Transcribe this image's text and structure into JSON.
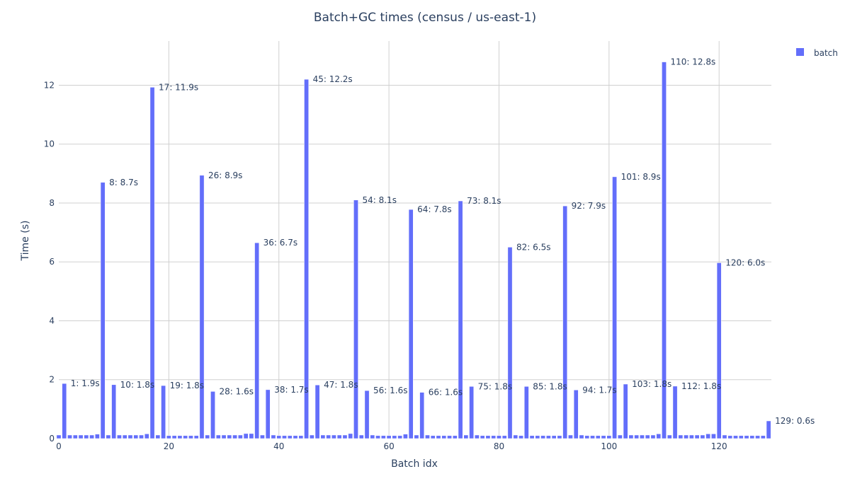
{
  "chart_data": {
    "type": "bar",
    "title": "Batch+GC times (census / us-east-1)",
    "xlabel": "Batch idx",
    "ylabel": "Time (s)",
    "xlim": [
      0,
      129.5
    ],
    "ylim": [
      0,
      13.5
    ],
    "xticks": [
      0,
      20,
      40,
      60,
      80,
      100,
      120
    ],
    "yticks": [
      0,
      2,
      4,
      6,
      8,
      10,
      12
    ],
    "grid": true,
    "legend_position": "top-right",
    "series": [
      {
        "name": "batch",
        "color": "#636efa",
        "x": [
          0,
          1,
          2,
          3,
          4,
          5,
          6,
          7,
          8,
          9,
          10,
          11,
          12,
          13,
          14,
          15,
          16,
          17,
          18,
          19,
          20,
          21,
          22,
          23,
          24,
          25,
          26,
          27,
          28,
          29,
          30,
          31,
          32,
          33,
          34,
          35,
          36,
          37,
          38,
          39,
          40,
          41,
          42,
          43,
          44,
          45,
          46,
          47,
          48,
          49,
          50,
          51,
          52,
          53,
          54,
          55,
          56,
          57,
          58,
          59,
          60,
          61,
          62,
          63,
          64,
          65,
          66,
          67,
          68,
          69,
          70,
          71,
          72,
          73,
          74,
          75,
          76,
          77,
          78,
          79,
          80,
          81,
          82,
          83,
          84,
          85,
          86,
          87,
          88,
          89,
          90,
          91,
          92,
          93,
          94,
          95,
          96,
          97,
          98,
          99,
          100,
          101,
          102,
          103,
          104,
          105,
          106,
          107,
          108,
          109,
          110,
          111,
          112,
          113,
          114,
          115,
          116,
          117,
          118,
          119,
          120,
          121,
          122,
          123,
          124,
          125,
          126,
          127,
          128,
          129
        ],
        "values": [
          0.12,
          1.87,
          0.12,
          0.12,
          0.12,
          0.12,
          0.12,
          0.15,
          8.7,
          0.12,
          1.83,
          0.12,
          0.12,
          0.12,
          0.12,
          0.12,
          0.16,
          11.93,
          0.12,
          1.8,
          0.1,
          0.1,
          0.1,
          0.1,
          0.1,
          0.1,
          8.94,
          0.12,
          1.6,
          0.12,
          0.12,
          0.12,
          0.12,
          0.12,
          0.17,
          0.17,
          6.65,
          0.12,
          1.66,
          0.12,
          0.1,
          0.1,
          0.1,
          0.1,
          0.1,
          12.2,
          0.12,
          1.82,
          0.12,
          0.12,
          0.12,
          0.12,
          0.12,
          0.17,
          8.1,
          0.12,
          1.63,
          0.12,
          0.1,
          0.1,
          0.1,
          0.1,
          0.1,
          0.15,
          7.78,
          0.12,
          1.57,
          0.12,
          0.1,
          0.1,
          0.1,
          0.1,
          0.1,
          8.07,
          0.12,
          1.77,
          0.12,
          0.1,
          0.1,
          0.1,
          0.1,
          0.1,
          6.5,
          0.12,
          0.1,
          1.77,
          0.1,
          0.1,
          0.1,
          0.1,
          0.1,
          0.1,
          7.9,
          0.12,
          1.65,
          0.12,
          0.1,
          0.1,
          0.1,
          0.1,
          0.1,
          8.89,
          0.12,
          1.85,
          0.12,
          0.12,
          0.12,
          0.12,
          0.12,
          0.16,
          12.79,
          0.12,
          1.78,
          0.12,
          0.12,
          0.12,
          0.12,
          0.12,
          0.16,
          0.16,
          5.97,
          0.12,
          0.1,
          0.1,
          0.1,
          0.1,
          0.1,
          0.1,
          0.1,
          0.6
        ]
      }
    ],
    "annotations": [
      {
        "x": 1,
        "y": 1.87,
        "text": "1: 1.9s"
      },
      {
        "x": 8,
        "y": 8.7,
        "text": "8: 8.7s"
      },
      {
        "x": 10,
        "y": 1.83,
        "text": "10: 1.8s"
      },
      {
        "x": 17,
        "y": 11.93,
        "text": "17: 11.9s"
      },
      {
        "x": 19,
        "y": 1.8,
        "text": "19: 1.8s"
      },
      {
        "x": 26,
        "y": 8.94,
        "text": "26: 8.9s"
      },
      {
        "x": 28,
        "y": 1.6,
        "text": "28: 1.6s"
      },
      {
        "x": 36,
        "y": 6.65,
        "text": "36: 6.7s"
      },
      {
        "x": 38,
        "y": 1.66,
        "text": "38: 1.7s"
      },
      {
        "x": 45,
        "y": 12.2,
        "text": "45: 12.2s"
      },
      {
        "x": 47,
        "y": 1.82,
        "text": "47: 1.8s"
      },
      {
        "x": 54,
        "y": 8.1,
        "text": "54: 8.1s"
      },
      {
        "x": 56,
        "y": 1.63,
        "text": "56: 1.6s"
      },
      {
        "x": 64,
        "y": 7.78,
        "text": "64: 7.8s"
      },
      {
        "x": 66,
        "y": 1.57,
        "text": "66: 1.6s"
      },
      {
        "x": 73,
        "y": 8.07,
        "text": "73: 8.1s"
      },
      {
        "x": 75,
        "y": 1.77,
        "text": "75: 1.8s"
      },
      {
        "x": 82,
        "y": 6.5,
        "text": "82: 6.5s"
      },
      {
        "x": 85,
        "y": 1.77,
        "text": "85: 1.8s"
      },
      {
        "x": 92,
        "y": 7.9,
        "text": "92: 7.9s"
      },
      {
        "x": 94,
        "y": 1.65,
        "text": "94: 1.7s"
      },
      {
        "x": 101,
        "y": 8.89,
        "text": "101: 8.9s"
      },
      {
        "x": 103,
        "y": 1.85,
        "text": "103: 1.8s"
      },
      {
        "x": 110,
        "y": 12.79,
        "text": "110: 12.8s"
      },
      {
        "x": 112,
        "y": 1.78,
        "text": "112: 1.8s"
      },
      {
        "x": 120,
        "y": 5.97,
        "text": "120: 6.0s"
      },
      {
        "x": 129,
        "y": 0.6,
        "text": "129: 0.6s"
      }
    ]
  }
}
